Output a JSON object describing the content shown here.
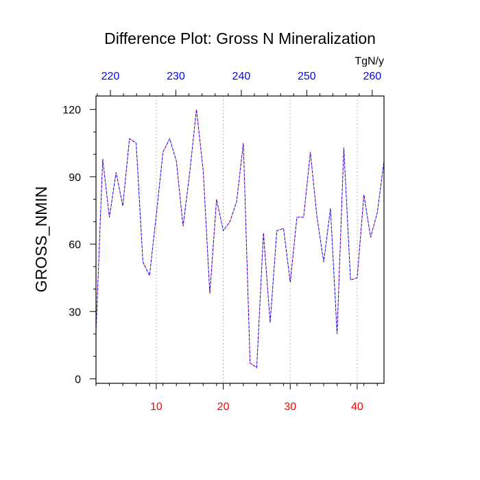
{
  "chart_data": {
    "type": "line",
    "title": "Difference Plot: Gross N Mineralization",
    "ylabel": "GROSS_NMIN",
    "top_axis_units": "TgN/y",
    "xlim": [
      1,
      44
    ],
    "ylim": [
      -2,
      126
    ],
    "top_xlim": [
      217.8,
      261.8
    ],
    "yticks": [
      0,
      30,
      60,
      90,
      120
    ],
    "xticks": [
      10,
      20,
      30,
      40
    ],
    "top_xticks": [
      220,
      230,
      240,
      250,
      260
    ],
    "grid": "vertical dotted lines at bottom x ticks",
    "colors": {
      "bottom_axis": "#ff0000",
      "top_axis": "#0000ff",
      "line1": "#0000ff",
      "line2": "#ff0000"
    },
    "series": [
      {
        "line_style": "dashed",
        "x": [
          1,
          2,
          3,
          4,
          5,
          6,
          7,
          8,
          9,
          10,
          11,
          12,
          13,
          14,
          15,
          16,
          17,
          18,
          19,
          20,
          21,
          22,
          23,
          24,
          25,
          26,
          27,
          28,
          29,
          30,
          31,
          32,
          33,
          34,
          35,
          36,
          37,
          38,
          39,
          40,
          41,
          42,
          43,
          44
        ],
        "values": [
          21,
          98,
          72,
          92,
          77,
          107,
          105,
          52,
          46,
          73,
          101,
          107,
          97,
          68,
          92,
          120,
          93,
          38,
          80,
          66,
          70,
          79,
          105,
          7,
          5,
          65,
          25,
          66,
          67,
          43,
          72,
          72,
          101,
          72,
          52,
          76,
          20,
          103,
          44,
          45,
          82,
          63,
          74,
          97
        ]
      },
      {
        "line_style": "dashed",
        "x": [
          1,
          2,
          3,
          4,
          5,
          6,
          7,
          8,
          9,
          10,
          11,
          12,
          13,
          14,
          15,
          16,
          17,
          18,
          19,
          20,
          21,
          22,
          23,
          24,
          25,
          26,
          27,
          28,
          29,
          30,
          31,
          32,
          33,
          34,
          35,
          36,
          37,
          38,
          39,
          40,
          41,
          42,
          43,
          44
        ],
        "values": [
          21,
          98,
          72,
          92,
          77,
          107,
          105,
          52,
          46,
          73,
          101,
          107,
          97,
          68,
          92,
          120,
          93,
          38,
          80,
          66,
          70,
          79,
          105,
          7,
          5,
          65,
          25,
          66,
          67,
          43,
          72,
          72,
          101,
          72,
          52,
          76,
          20,
          103,
          44,
          45,
          82,
          63,
          74,
          97
        ]
      }
    ]
  }
}
